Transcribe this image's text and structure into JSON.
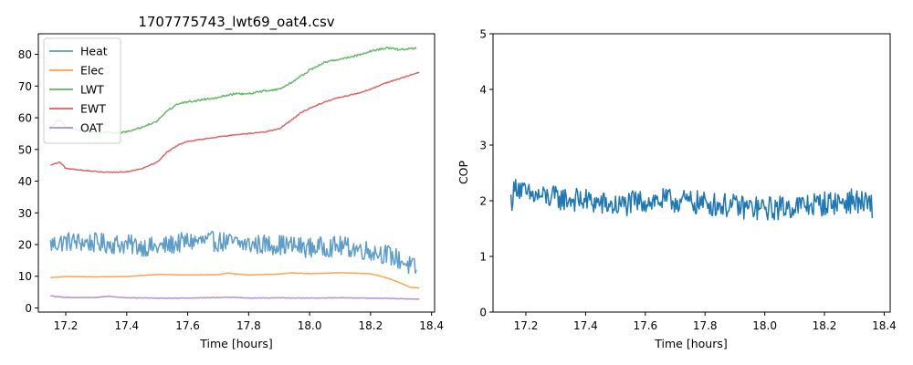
{
  "chart_data": [
    {
      "type": "line",
      "title": "1707775743_lwt69_oat4.csv",
      "xlabel": "Time [hours]",
      "ylabel": "",
      "xlim": [
        17.11,
        18.41
      ],
      "ylim": [
        -1.3,
        86.5
      ],
      "xticks": [
        17.2,
        17.4,
        17.6,
        17.8,
        18.0,
        18.2,
        18.4
      ],
      "yticks": [
        0,
        10,
        20,
        30,
        40,
        50,
        60,
        70,
        80
      ],
      "grid": false,
      "legend": "top-left",
      "series": [
        {
          "name": "Heat",
          "color": "#1f77b4",
          "noise": 3.2,
          "points": [
            [
              17.15,
              20
            ],
            [
              17.2,
              21
            ],
            [
              17.3,
              20.5
            ],
            [
              17.4,
              20
            ],
            [
              17.5,
              19
            ],
            [
              17.6,
              21
            ],
            [
              17.7,
              21
            ],
            [
              17.8,
              20
            ],
            [
              17.9,
              20
            ],
            [
              18.0,
              19
            ],
            [
              18.1,
              19.5
            ],
            [
              18.2,
              18
            ],
            [
              18.25,
              17
            ],
            [
              18.3,
              15
            ],
            [
              18.35,
              12
            ]
          ]
        },
        {
          "name": "Elec",
          "color": "#ff7f0e",
          "noise": 0.05,
          "points": [
            [
              17.15,
              9.6
            ],
            [
              17.2,
              9.9
            ],
            [
              17.3,
              9.8
            ],
            [
              17.4,
              9.9
            ],
            [
              17.5,
              10.6
            ],
            [
              17.6,
              10.4
            ],
            [
              17.7,
              10.5
            ],
            [
              17.73,
              11
            ],
            [
              17.8,
              10.4
            ],
            [
              17.9,
              10.7
            ],
            [
              17.94,
              11.1
            ],
            [
              18.0,
              10.8
            ],
            [
              18.1,
              11.1
            ],
            [
              18.2,
              10.8
            ],
            [
              18.25,
              9.6
            ],
            [
              18.3,
              7.8
            ],
            [
              18.33,
              6.5
            ],
            [
              18.36,
              6.3
            ]
          ]
        },
        {
          "name": "LWT",
          "color": "#2ca02c",
          "noise": 0.3,
          "points": [
            [
              17.15,
              57
            ],
            [
              17.18,
              59.5
            ],
            [
              17.2,
              57
            ],
            [
              17.25,
              56
            ],
            [
              17.3,
              55.5
            ],
            [
              17.35,
              55.3
            ],
            [
              17.4,
              55.5
            ],
            [
              17.45,
              57
            ],
            [
              17.5,
              59
            ],
            [
              17.53,
              62
            ],
            [
              17.57,
              64.5
            ],
            [
              17.6,
              65
            ],
            [
              17.7,
              66.5
            ],
            [
              17.75,
              67.5
            ],
            [
              17.8,
              67.5
            ],
            [
              17.85,
              68.5
            ],
            [
              17.9,
              69
            ],
            [
              17.93,
              70.5
            ],
            [
              17.97,
              73
            ],
            [
              18.0,
              75
            ],
            [
              18.05,
              77.5
            ],
            [
              18.1,
              78.5
            ],
            [
              18.15,
              79.5
            ],
            [
              18.2,
              81
            ],
            [
              18.25,
              82
            ],
            [
              18.3,
              81.5
            ],
            [
              18.35,
              82
            ]
          ]
        },
        {
          "name": "EWT",
          "color": "#d62728",
          "noise": 0.15,
          "points": [
            [
              17.15,
              45
            ],
            [
              17.18,
              46
            ],
            [
              17.2,
              44
            ],
            [
              17.25,
              43.5
            ],
            [
              17.3,
              43
            ],
            [
              17.35,
              42.8
            ],
            [
              17.4,
              43
            ],
            [
              17.45,
              44
            ],
            [
              17.5,
              46
            ],
            [
              17.53,
              49
            ],
            [
              17.57,
              51.5
            ],
            [
              17.6,
              52.5
            ],
            [
              17.7,
              54
            ],
            [
              17.8,
              55
            ],
            [
              17.85,
              55.5
            ],
            [
              17.9,
              56.5
            ],
            [
              17.93,
              58.5
            ],
            [
              17.97,
              61.5
            ],
            [
              18.0,
              63
            ],
            [
              18.05,
              65
            ],
            [
              18.1,
              66.5
            ],
            [
              18.15,
              67.5
            ],
            [
              18.2,
              69
            ],
            [
              18.25,
              71
            ],
            [
              18.3,
              72.5
            ],
            [
              18.36,
              74.3
            ]
          ]
        },
        {
          "name": "OAT",
          "color": "#9467bd",
          "noise": 0.08,
          "points": [
            [
              17.15,
              3.8
            ],
            [
              17.2,
              3.3
            ],
            [
              17.3,
              3.3
            ],
            [
              17.34,
              3.7
            ],
            [
              17.4,
              3.2
            ],
            [
              17.5,
              3.1
            ],
            [
              17.6,
              3.1
            ],
            [
              17.75,
              3.4
            ],
            [
              17.8,
              3.1
            ],
            [
              17.9,
              3.2
            ],
            [
              18.0,
              3.1
            ],
            [
              18.1,
              3.2
            ],
            [
              18.2,
              3.1
            ],
            [
              18.25,
              3.0
            ],
            [
              18.3,
              2.9
            ],
            [
              18.36,
              2.8
            ]
          ]
        }
      ]
    },
    {
      "type": "line",
      "title": "",
      "xlabel": "Time [hours]",
      "ylabel": "COP",
      "xlim": [
        17.09,
        18.42
      ],
      "ylim": [
        0,
        5
      ],
      "xticks": [
        17.2,
        17.4,
        17.6,
        17.8,
        18.0,
        18.2,
        18.4
      ],
      "yticks": [
        0,
        1,
        2,
        3,
        4,
        5
      ],
      "grid": false,
      "legend": "none",
      "series": [
        {
          "name": "",
          "color": "#1f77b4",
          "noise": 0.22,
          "points": [
            [
              17.15,
              2.0
            ],
            [
              17.17,
              2.3
            ],
            [
              17.2,
              2.1
            ],
            [
              17.3,
              2.05
            ],
            [
              17.4,
              2.0
            ],
            [
              17.5,
              1.9
            ],
            [
              17.6,
              2.0
            ],
            [
              17.7,
              2.0
            ],
            [
              17.8,
              1.95
            ],
            [
              17.9,
              1.9
            ],
            [
              18.0,
              1.85
            ],
            [
              18.1,
              1.9
            ],
            [
              18.2,
              1.95
            ],
            [
              18.3,
              2.0
            ],
            [
              18.36,
              1.9
            ]
          ]
        }
      ]
    }
  ]
}
